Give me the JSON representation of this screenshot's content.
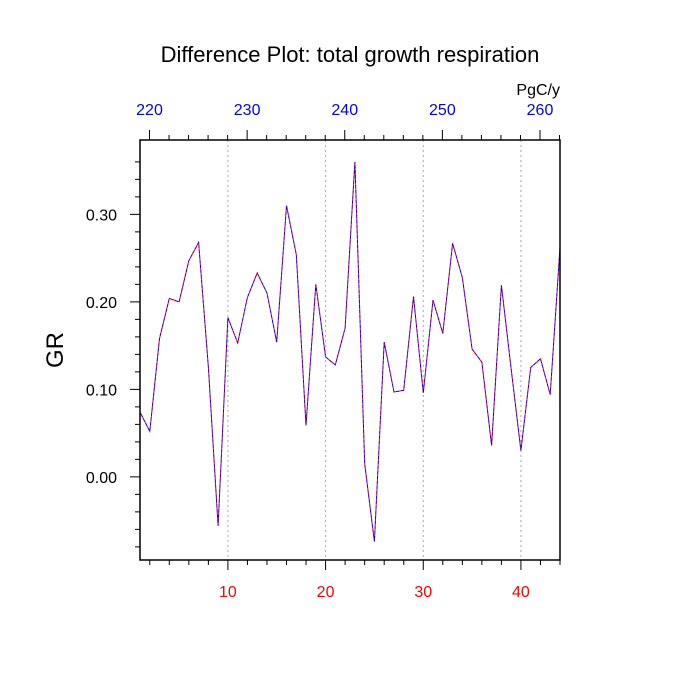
{
  "chart_data": {
    "type": "line",
    "title": "Difference Plot: total growth respiration",
    "ylabel": "GR",
    "top_axis_unit": "PgC/y",
    "xlim": [
      1,
      44
    ],
    "ylim": [
      -0.095,
      0.385
    ],
    "bottom_ticks": [
      "10",
      "20",
      "30",
      "40"
    ],
    "bottom_tick_values": [
      10,
      20,
      30,
      40
    ],
    "top_ticks": [
      "220",
      "230",
      "240",
      "250",
      "260"
    ],
    "top_tick_values": [
      220,
      230,
      240,
      250,
      260
    ],
    "y_ticks": [
      "0.00",
      "0.10",
      "0.20",
      "0.30"
    ],
    "y_tick_values": [
      0.0,
      0.1,
      0.2,
      0.3
    ],
    "grid": "vertical dotted",
    "colors": {
      "line_red": "#ff0000",
      "line_blue": "#0000ff",
      "bottom_tick_labels": "#ff0000",
      "top_tick_labels": "#0000ff",
      "grid": "#aaaaaa"
    },
    "series": [
      {
        "x": [
          1,
          2,
          3,
          4,
          5,
          6,
          7,
          8,
          9,
          10,
          11,
          12,
          13,
          14,
          15,
          16,
          17,
          18,
          19,
          20,
          21,
          22,
          23,
          24,
          25,
          26,
          27,
          28,
          29,
          30,
          31,
          32,
          33,
          34,
          35,
          36,
          37,
          38,
          39,
          40,
          41,
          42,
          43,
          44
        ],
        "values": [
          0.074,
          0.052,
          0.158,
          0.204,
          0.2,
          0.247,
          0.268,
          0.125,
          -0.056,
          0.182,
          0.153,
          0.205,
          0.233,
          0.21,
          0.154,
          0.31,
          0.254,
          0.059,
          0.22,
          0.137,
          0.128,
          0.17,
          0.36,
          0.015,
          -0.074,
          0.154,
          0.097,
          0.099,
          0.206,
          0.096,
          0.202,
          0.164,
          0.267,
          0.228,
          0.146,
          0.131,
          0.036,
          0.219,
          0.123,
          0.03,
          0.125,
          0.135,
          0.094,
          0.262
        ]
      }
    ]
  }
}
